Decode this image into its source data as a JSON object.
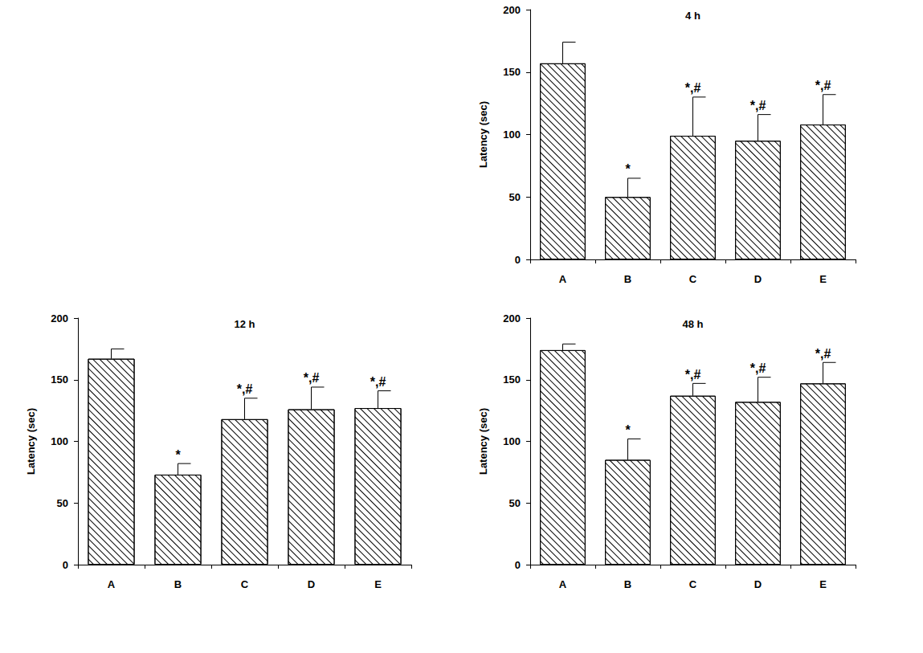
{
  "chart_data": [
    {
      "type": "bar",
      "title": "4 h",
      "categories": [
        "A",
        "B",
        "C",
        "D",
        "E"
      ],
      "values": [
        157,
        50,
        99,
        95,
        108
      ],
      "errors": [
        17,
        15,
        31,
        21,
        24
      ],
      "annotations": [
        null,
        "*",
        "*,#",
        "*,#",
        "*,#"
      ],
      "y_label": "Latency (sec)",
      "ylim": [
        0,
        200
      ],
      "yticks": [
        0,
        50,
        100,
        150,
        200
      ],
      "color": "#ffffff",
      "grid": false
    },
    {
      "type": "bar",
      "title": "12 h",
      "categories": [
        "A",
        "B",
        "C",
        "D",
        "E"
      ],
      "values": [
        167,
        73,
        118,
        126,
        127
      ],
      "errors": [
        8,
        9,
        17,
        18,
        14
      ],
      "annotations": [
        null,
        "*",
        "*,#",
        "*,#",
        "*,#"
      ],
      "y_label": "Latency (sec)",
      "ylim": [
        0,
        200
      ],
      "yticks": [
        0,
        50,
        100,
        150,
        200
      ],
      "color": "#ffffff",
      "grid": false
    },
    {
      "type": "bar",
      "title": "48 h",
      "categories": [
        "A",
        "B",
        "C",
        "D",
        "E"
      ],
      "values": [
        174,
        85,
        137,
        132,
        147
      ],
      "errors": [
        5,
        17,
        10,
        20,
        17
      ],
      "annotations": [
        null,
        "*",
        "*,#",
        "*,#",
        "*,#"
      ],
      "y_label": "Latency (sec)",
      "ylim": [
        0,
        200
      ],
      "yticks": [
        0,
        50,
        100,
        150,
        200
      ],
      "color": "#ffffff",
      "grid": false
    }
  ]
}
